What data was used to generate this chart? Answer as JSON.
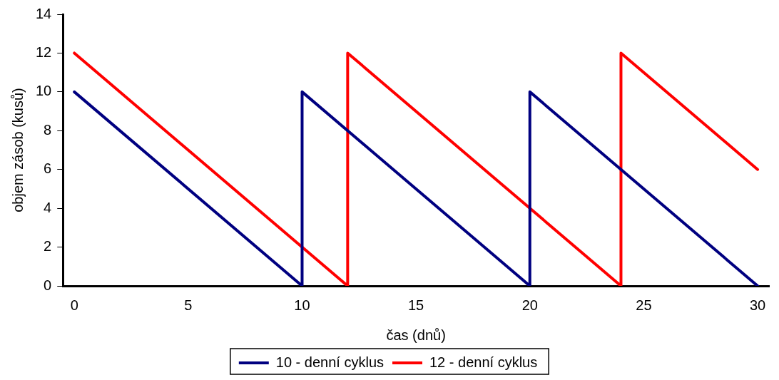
{
  "chart_data": {
    "type": "line",
    "xlabel": "čas (dnů)",
    "ylabel": "objem zásob (kusů)",
    "xlim": [
      -0.5,
      30.5
    ],
    "xticks": [
      0,
      5,
      10,
      15,
      20,
      25,
      30
    ],
    "ylim": [
      0,
      14
    ],
    "yticks": [
      0,
      2,
      4,
      6,
      8,
      10,
      12,
      14
    ],
    "grid": false,
    "legend": "bottom",
    "marker": "none",
    "line_style": "solid",
    "series": [
      {
        "name": "10 - denní cyklus",
        "color": "#000080",
        "x": [
          0,
          10,
          10,
          20,
          20,
          30
        ],
        "values": [
          10,
          0,
          10,
          0,
          10,
          0
        ]
      },
      {
        "name": "12 - denní cyklus",
        "color": "#ff0000",
        "x": [
          0,
          12,
          12,
          24,
          24,
          30
        ],
        "values": [
          12,
          0,
          12,
          0,
          12,
          6
        ]
      }
    ]
  }
}
